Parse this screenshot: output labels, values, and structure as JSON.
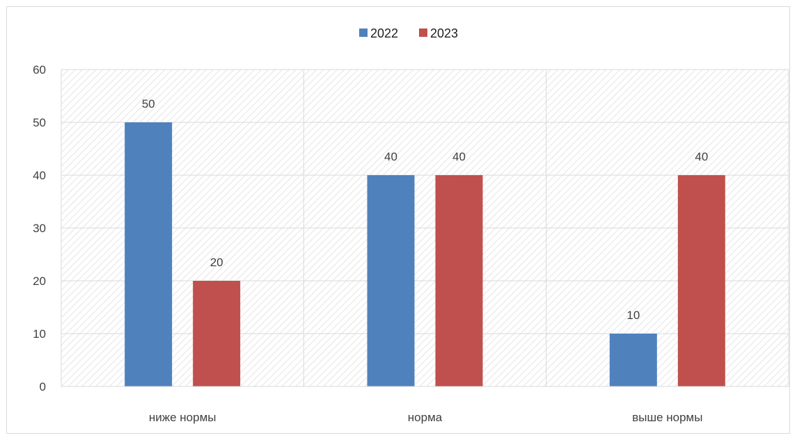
{
  "chart_data": {
    "type": "bar",
    "categories": [
      "ниже нормы",
      "норма",
      "выше нормы"
    ],
    "series": [
      {
        "name": "2022",
        "values": [
          50,
          40,
          10
        ],
        "color": "#4f81bd"
      },
      {
        "name": "2023",
        "values": [
          20,
          40,
          40
        ],
        "color": "#c0504d"
      }
    ],
    "ylim": [
      0,
      60
    ],
    "yticks": [
      "0",
      "10",
      "20",
      "30",
      "40",
      "50",
      "60"
    ],
    "data_labels": [
      [
        "50",
        "40",
        "10"
      ],
      [
        "20",
        "40",
        "40"
      ]
    ],
    "legend_position": "top",
    "grid": true,
    "background_pattern": "diagonal-hatch"
  }
}
